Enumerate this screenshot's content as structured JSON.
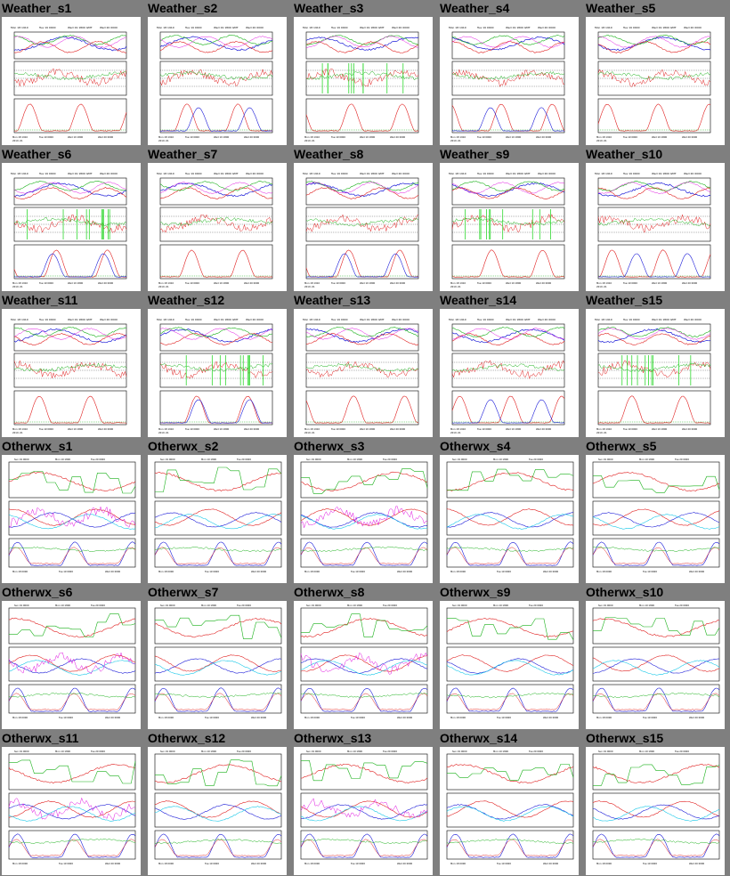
{
  "page": {
    "background": "#7f7f7f"
  },
  "colors": {
    "red": "#e02020",
    "green": "#18b018",
    "blue": "#1c1cd8",
    "cyan": "#18c8e8",
    "magenta": "#e010e0",
    "lightgreen": "#30d830",
    "orange": "#e07818",
    "axis": "#000000"
  },
  "weather_header": [
    "Mon 18 1910",
    "Tue 19 0000",
    "Wed 19 1800 GMT",
    "Wed 20 0000"
  ],
  "weather_footer": [
    "Mon 18 1910",
    "Tue 19 0000",
    "Wed 19 1800",
    "Wed 20 0000",
    "2019 -01"
  ],
  "otherwx_header": [
    "Sun 19 0000",
    "Mon 19 1800",
    "Tue 20 0000"
  ],
  "otherwx_footer": [
    "Mon 18 0000",
    "Tue 19 0000",
    "Wed 20 0000"
  ],
  "cells": [
    {
      "title": "Weather_s1",
      "kind": "weather"
    },
    {
      "title": "Weather_s2",
      "kind": "weather"
    },
    {
      "title": "Weather_s3",
      "kind": "weather"
    },
    {
      "title": "Weather_s4",
      "kind": "weather"
    },
    {
      "title": "Weather_s5",
      "kind": "weather"
    },
    {
      "title": "Weather_s6",
      "kind": "weather"
    },
    {
      "title": "Weather_s7",
      "kind": "weather"
    },
    {
      "title": "Weather_s8",
      "kind": "weather"
    },
    {
      "title": "Weather_s9",
      "kind": "weather"
    },
    {
      "title": "Weather_s10",
      "kind": "weather"
    },
    {
      "title": "Weather_s11",
      "kind": "weather"
    },
    {
      "title": "Weather_s12",
      "kind": "weather"
    },
    {
      "title": "Weather_s13",
      "kind": "weather"
    },
    {
      "title": "Weather_s14",
      "kind": "weather"
    },
    {
      "title": "Weather_s15",
      "kind": "weather"
    },
    {
      "title": "Otherwx_s1",
      "kind": "otherwx"
    },
    {
      "title": "Otherwx_s2",
      "kind": "otherwx"
    },
    {
      "title": "Otherwx_s3",
      "kind": "otherwx"
    },
    {
      "title": "Otherwx_s4",
      "kind": "otherwx"
    },
    {
      "title": "Otherwx_s5",
      "kind": "otherwx"
    },
    {
      "title": "Otherwx_s6",
      "kind": "otherwx"
    },
    {
      "title": "Otherwx_s7",
      "kind": "otherwx"
    },
    {
      "title": "Otherwx_s8",
      "kind": "otherwx"
    },
    {
      "title": "Otherwx_s9",
      "kind": "otherwx"
    },
    {
      "title": "Otherwx_s10",
      "kind": "otherwx"
    },
    {
      "title": "Otherwx_s11",
      "kind": "otherwx"
    },
    {
      "title": "Otherwx_s12",
      "kind": "otherwx"
    },
    {
      "title": "Otherwx_s13",
      "kind": "otherwx"
    },
    {
      "title": "Otherwx_s14",
      "kind": "otherwx"
    },
    {
      "title": "Otherwx_s15",
      "kind": "otherwx"
    }
  ]
}
